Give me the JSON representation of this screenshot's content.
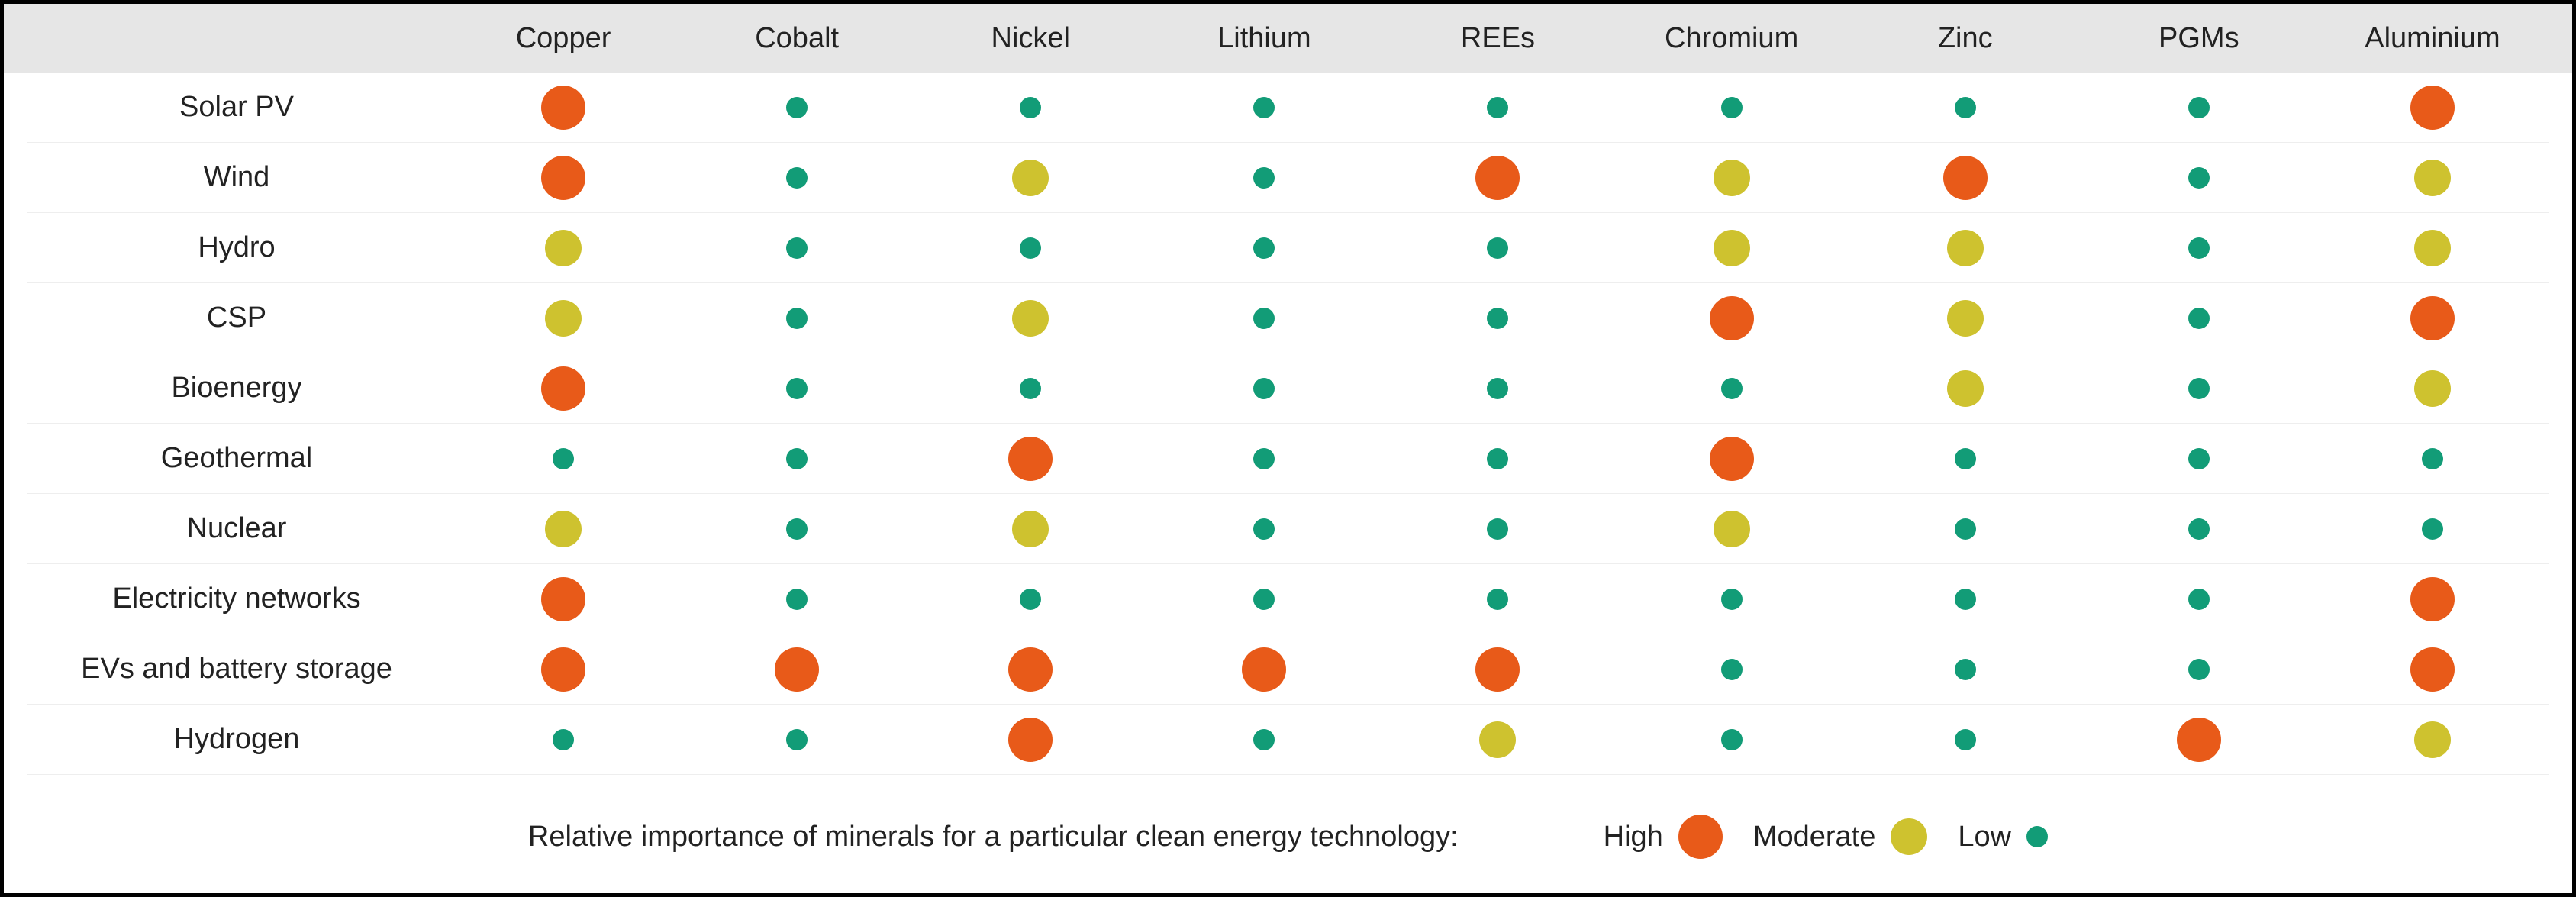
{
  "chart": {
    "type": "dot-matrix",
    "background_color": "#ffffff",
    "border_color": "#000000",
    "header_bg": "#e6e6e6",
    "text_color": "#222222",
    "row_divider_color": "#eeeeee",
    "font_size_header": 38,
    "font_size_label": 38,
    "font_size_legend": 38,
    "columns": [
      "Copper",
      "Cobalt",
      "Nickel",
      "Lithium",
      "REEs",
      "Chromium",
      "Zinc",
      "PGMs",
      "Aluminium"
    ],
    "rows": [
      {
        "label": "Solar PV",
        "values": [
          "H",
          "L",
          "L",
          "L",
          "L",
          "L",
          "L",
          "L",
          "H"
        ]
      },
      {
        "label": "Wind",
        "values": [
          "H",
          "L",
          "M",
          "L",
          "H",
          "M",
          "H",
          "L",
          "M"
        ]
      },
      {
        "label": "Hydro",
        "values": [
          "M",
          "L",
          "L",
          "L",
          "L",
          "M",
          "M",
          "L",
          "M"
        ]
      },
      {
        "label": "CSP",
        "values": [
          "M",
          "L",
          "M",
          "L",
          "L",
          "H",
          "M",
          "L",
          "H"
        ]
      },
      {
        "label": "Bioenergy",
        "values": [
          "H",
          "L",
          "L",
          "L",
          "L",
          "L",
          "M",
          "L",
          "M"
        ]
      },
      {
        "label": "Geothermal",
        "values": [
          "L",
          "L",
          "H",
          "L",
          "L",
          "H",
          "L",
          "L",
          "L"
        ]
      },
      {
        "label": "Nuclear",
        "values": [
          "M",
          "L",
          "M",
          "L",
          "L",
          "M",
          "L",
          "L",
          "L"
        ]
      },
      {
        "label": "Electricity networks",
        "values": [
          "H",
          "L",
          "L",
          "L",
          "L",
          "L",
          "L",
          "L",
          "H"
        ]
      },
      {
        "label": "EVs and battery storage",
        "values": [
          "H",
          "H",
          "H",
          "H",
          "H",
          "L",
          "L",
          "L",
          "H"
        ]
      },
      {
        "label": "Hydrogen",
        "values": [
          "L",
          "L",
          "H",
          "L",
          "M",
          "L",
          "L",
          "H",
          "M"
        ]
      }
    ],
    "levels": {
      "H": {
        "label": "High",
        "color": "#e85a19",
        "diameter": 58
      },
      "M": {
        "label": "Moderate",
        "color": "#cec22f",
        "diameter": 48
      },
      "L": {
        "label": "Low",
        "color": "#129c77",
        "diameter": 28
      }
    },
    "legend_text": "Relative importance of minerals for a particular clean energy technology:"
  }
}
